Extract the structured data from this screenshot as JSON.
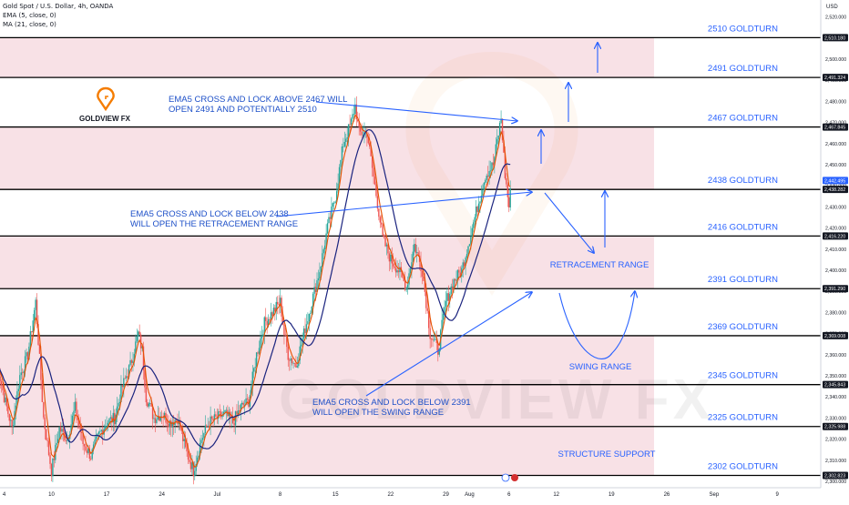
{
  "header": {
    "symbol_line": "Gold Spot / U.S. Dollar, 4h, OANDA",
    "ema_line": "EMA (5, close, 0)",
    "ma_line": "MA (21, close, 0)"
  },
  "currency": "USD",
  "logo": {
    "text": "GOLDVIEW FX",
    "watermark": "GOLDVIEW FX"
  },
  "colors": {
    "zone_fill": "#f8e1e6",
    "level_line": "#000000",
    "label_blue": "#2962ff",
    "annotation_blue": "#1e50c8",
    "arrow_blue": "#2962ff",
    "ema_line": "#e65100",
    "ma_line": "#1a237e",
    "up_candle": "#26a69a",
    "down_candle": "#ef5350",
    "logo_orange": "#f57c00",
    "price_badge": "#131722",
    "current_badge": "#2962ff"
  },
  "chart_data": {
    "type": "candlestick",
    "ylim": [
      2297,
      2528
    ],
    "x_axis_labels": [
      {
        "text": "4",
        "day": 4
      },
      {
        "text": "10",
        "day": 10
      },
      {
        "text": "17",
        "day": 17
      },
      {
        "text": "24",
        "day": 24
      },
      {
        "text": "Jul",
        "day": 31
      },
      {
        "text": "8",
        "day": 39
      },
      {
        "text": "15",
        "day": 46
      },
      {
        "text": "22",
        "day": 53
      },
      {
        "text": "29",
        "day": 60
      },
      {
        "text": "Aug",
        "day": 63
      },
      {
        "text": "6",
        "day": 68
      },
      {
        "text": "12",
        "day": 74
      },
      {
        "text": "19",
        "day": 81
      },
      {
        "text": "26",
        "day": 88
      },
      {
        "text": "Sep",
        "day": 94
      },
      {
        "text": "9",
        "day": 102
      }
    ],
    "y_ticks": [
      "2,520.000",
      "2,510.000",
      "2,500.000",
      "2,490.000",
      "2,480.000",
      "2,470.000",
      "2,460.000",
      "2,450.000",
      "2,440.000",
      "2,430.000",
      "2,420.000",
      "2,410.000",
      "2,400.000",
      "2,390.000",
      "2,380.000",
      "2,370.000",
      "2,360.000",
      "2,350.000",
      "2,340.000",
      "2,330.000",
      "2,320.000",
      "2,310.000",
      "2,300.000"
    ],
    "levels": [
      {
        "price": 2510.18,
        "label": "2510 GOLDTURN",
        "badge": "2,510.180"
      },
      {
        "price": 2491.324,
        "label": "2491 GOLDTURN",
        "badge": "2,491.324"
      },
      {
        "price": 2467.845,
        "label": "2467 GOLDTURN",
        "badge": "2,467.845"
      },
      {
        "price": 2438.282,
        "label": "2438 GOLDTURN",
        "badge": "2,438.282"
      },
      {
        "price": 2416.22,
        "label": "2416 GOLDTURN",
        "badge": "2,416.220"
      },
      {
        "price": 2391.29,
        "label": "2391 GOLDTURN",
        "badge": "2,391.290"
      },
      {
        "price": 2369.008,
        "label": "2369 GOLDTURN",
        "badge": "2,369.008"
      },
      {
        "price": 2345.843,
        "label": "2345 GOLDTURN",
        "badge": "2,345.843"
      },
      {
        "price": 2325.988,
        "label": "2325 GOLDTURN",
        "badge": "2,325.988"
      },
      {
        "price": 2302.823,
        "label": "2302 GOLDTURN",
        "badge": "2,302.823"
      }
    ],
    "current_price": {
      "price": 2442.495,
      "badge": "2,442.495"
    },
    "zones": [
      [
        2491.324,
        2510.18
      ],
      [
        2438.282,
        2467.845
      ],
      [
        2391.29,
        2416.22
      ],
      [
        2302.823,
        2369.008
      ]
    ],
    "annotations": [
      {
        "lines": [
          "EMA5 CROSS AND LOCK ABOVE 2467 WILL",
          "OPEN 2491 AND POTENTIALLY 2510"
        ]
      },
      {
        "lines": [
          "EMA5 CROSS AND LOCK BELOW 2438",
          "WILL OPEN THE RETRACEMENT RANGE"
        ]
      },
      {
        "lines": [
          "EMA5 CROSS AND LOCK BELOW 2391",
          "WILL OPEN THE SWING RANGE"
        ]
      }
    ],
    "range_labels": {
      "retracement": "RETRACEMENT RANGE",
      "swing": "SWING RANGE",
      "structure": "STRUCTURE SUPPORT"
    },
    "price_path": [
      [
        3,
        2358
      ],
      [
        4,
        2340
      ],
      [
        5,
        2325
      ],
      [
        6,
        2350
      ],
      [
        7,
        2360
      ],
      [
        8,
        2385
      ],
      [
        9,
        2330
      ],
      [
        10,
        2305
      ],
      [
        11,
        2325
      ],
      [
        12,
        2320
      ],
      [
        13,
        2335
      ],
      [
        14,
        2318
      ],
      [
        15,
        2312
      ],
      [
        16,
        2322
      ],
      [
        17,
        2328
      ],
      [
        18,
        2330
      ],
      [
        19,
        2345
      ],
      [
        20,
        2355
      ],
      [
        21,
        2370
      ],
      [
        21.5,
        2362
      ],
      [
        22,
        2340
      ],
      [
        23,
        2330
      ],
      [
        24,
        2332
      ],
      [
        25,
        2328
      ],
      [
        26,
        2330
      ],
      [
        27,
        2315
      ],
      [
        28,
        2305
      ],
      [
        29,
        2320
      ],
      [
        30,
        2328
      ],
      [
        31,
        2330
      ],
      [
        32,
        2332
      ],
      [
        33,
        2328
      ],
      [
        34,
        2335
      ],
      [
        35,
        2338
      ],
      [
        36,
        2360
      ],
      [
        37,
        2375
      ],
      [
        38,
        2380
      ],
      [
        39,
        2385
      ],
      [
        39.5,
        2370
      ],
      [
        40,
        2360
      ],
      [
        41,
        2355
      ],
      [
        42,
        2370
      ],
      [
        43,
        2385
      ],
      [
        44,
        2400
      ],
      [
        45,
        2420
      ],
      [
        46,
        2435
      ],
      [
        47,
        2460
      ],
      [
        48,
        2470
      ],
      [
        48.5,
        2478
      ],
      [
        49,
        2465
      ],
      [
        50,
        2465
      ],
      [
        51,
        2440
      ],
      [
        52,
        2415
      ],
      [
        53,
        2405
      ],
      [
        54,
        2400
      ],
      [
        55,
        2392
      ],
      [
        56,
        2412
      ],
      [
        57,
        2400
      ],
      [
        58,
        2370
      ],
      [
        59,
        2362
      ],
      [
        60,
        2385
      ],
      [
        61,
        2395
      ],
      [
        62,
        2400
      ],
      [
        63,
        2415
      ],
      [
        64,
        2430
      ],
      [
        65,
        2445
      ],
      [
        66,
        2450
      ],
      [
        67,
        2472
      ],
      [
        67.5,
        2445
      ],
      [
        68,
        2430
      ],
      [
        68.3,
        2442
      ]
    ]
  }
}
